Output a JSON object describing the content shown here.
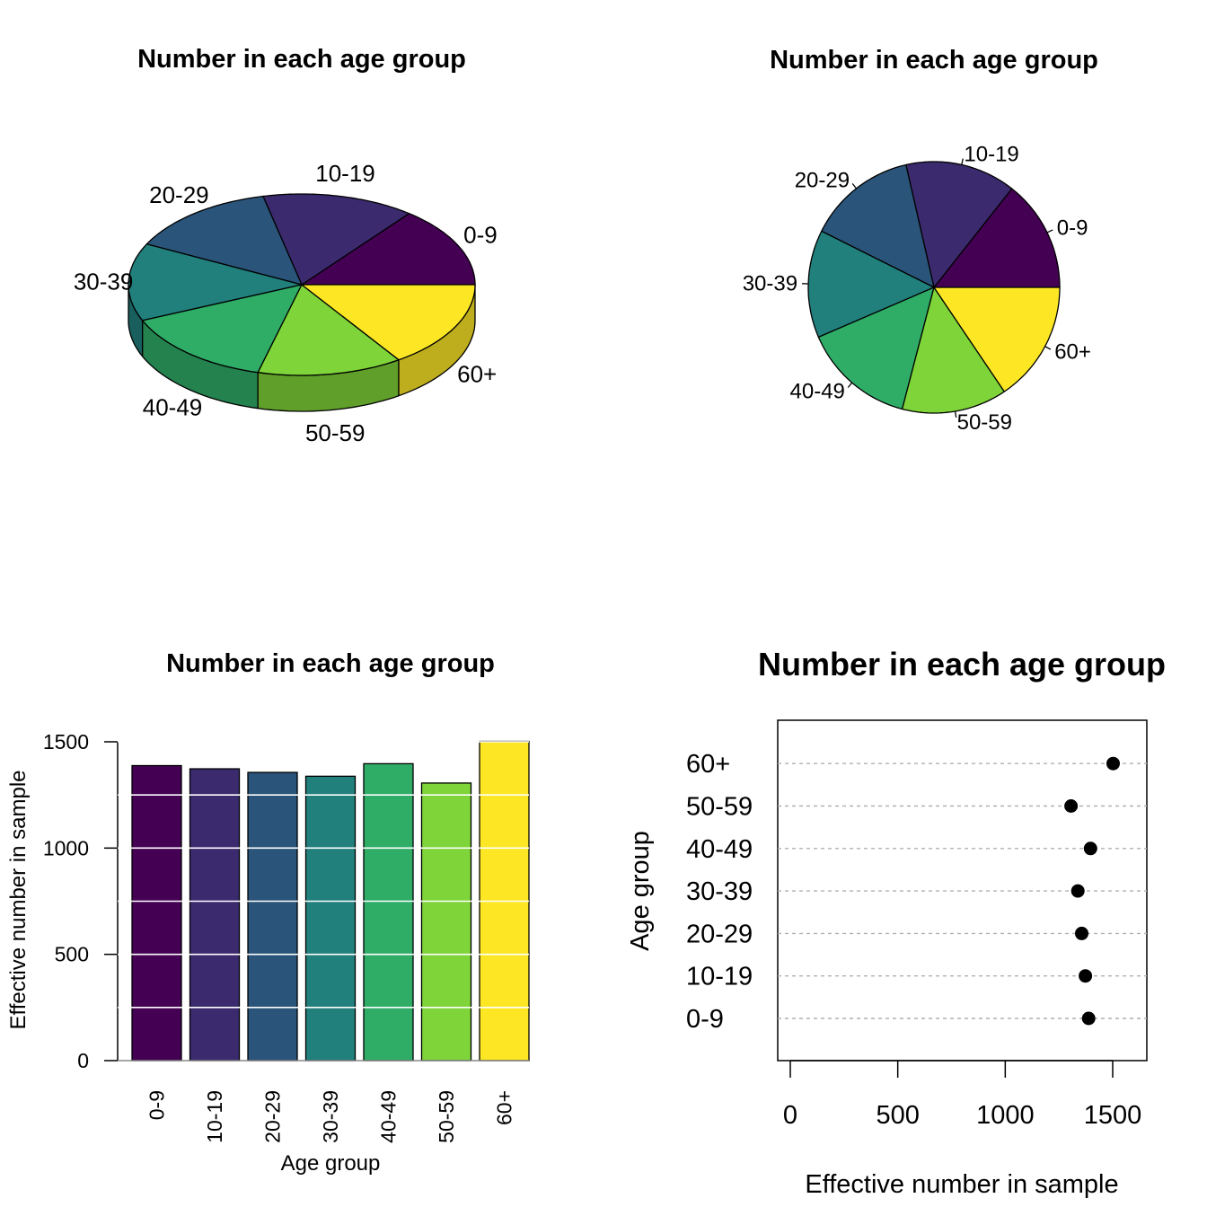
{
  "colors": [
    "#440154",
    "#3B2A6E",
    "#2A5479",
    "#217F7C",
    "#2FAD67",
    "#7ED438",
    "#FDE725"
  ],
  "chart_data": [
    {
      "type": "pie",
      "variant": "3d",
      "title": "Number in each age group",
      "categories": [
        "0-9",
        "10-19",
        "20-29",
        "30-39",
        "40-49",
        "50-59",
        "60+"
      ],
      "values": [
        1388,
        1373,
        1356,
        1338,
        1397,
        1306,
        1502
      ]
    },
    {
      "type": "pie",
      "title": "Number in each age group",
      "categories": [
        "0-9",
        "10-19",
        "20-29",
        "30-39",
        "40-49",
        "50-59",
        "60+"
      ],
      "values": [
        1388,
        1373,
        1356,
        1338,
        1397,
        1306,
        1502
      ]
    },
    {
      "type": "bar",
      "title": "Number in each age group",
      "xlabel": "Age group",
      "ylabel": "Effective number in sample",
      "categories": [
        "0-9",
        "10-19",
        "20-29",
        "30-39",
        "40-49",
        "50-59",
        "60+"
      ],
      "values": [
        1388,
        1373,
        1356,
        1338,
        1397,
        1306,
        1502
      ],
      "ylim": [
        0,
        1500
      ],
      "yticks": [
        "0",
        "500",
        "1000",
        "1500"
      ],
      "grid": true
    },
    {
      "type": "scatter",
      "variant": "dotplot",
      "title": "Number in each age group",
      "xlabel": "Effective number in sample",
      "ylabel": "Age group",
      "categories": [
        "0-9",
        "10-19",
        "20-29",
        "30-39",
        "40-49",
        "50-59",
        "60+"
      ],
      "values": [
        1388,
        1373,
        1356,
        1338,
        1397,
        1306,
        1502
      ],
      "xlim": [
        0,
        1600
      ],
      "xticks": [
        "0",
        "500",
        "1000",
        "1500"
      ],
      "grid": true
    }
  ]
}
